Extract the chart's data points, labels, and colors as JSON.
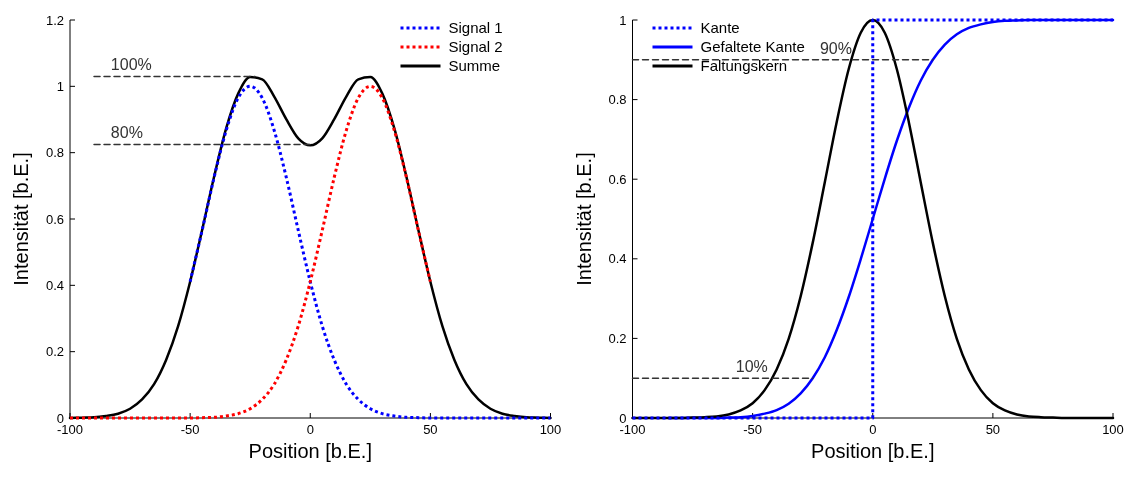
{
  "chart_data": [
    {
      "type": "line",
      "xlabel": "Position [b.E.]",
      "ylabel": "Intensität [b.E.]",
      "xlim": [
        -100,
        100
      ],
      "xticks": [
        -100,
        -50,
        0,
        50,
        100
      ],
      "ylim": [
        0,
        1.2
      ],
      "yticks": [
        0,
        0.2,
        0.4,
        0.6,
        0.8,
        1,
        1.2
      ],
      "legend": "top right",
      "x": [
        -100,
        -95,
        -90,
        -85,
        -80,
        -75,
        -70,
        -65,
        -60,
        -55,
        -50,
        -45,
        -40,
        -35,
        -30,
        -25,
        -20,
        -15,
        -10,
        -5,
        0,
        5,
        10,
        15,
        20,
        25,
        30,
        35,
        40,
        45,
        50,
        55,
        60,
        65,
        70,
        75,
        80,
        85,
        90,
        95,
        100
      ],
      "series": [
        {
          "name": "Signal 1",
          "color": "#0000ff",
          "line_style": "dotted",
          "values": [
            null,
            null,
            null,
            null,
            null,
            null,
            null,
            null,
            null,
            null,
            0.411,
            0.566,
            0.726,
            0.867,
            0.965,
            1,
            0.965,
            0.867,
            0.726,
            0.566,
            0.411,
            0.277,
            0.175,
            0.102,
            0.056,
            0.028,
            0.013,
            0.006,
            0.002,
            0.001,
            0,
            0,
            0,
            0,
            0,
            0,
            0,
            0,
            0,
            0,
            0
          ]
        },
        {
          "name": "Signal 2",
          "color": "#ff0000",
          "line_style": "dotted",
          "values": [
            0,
            0,
            0,
            0,
            0,
            0,
            0,
            0,
            0,
            0,
            0,
            0.001,
            0.002,
            0.006,
            0.013,
            0.028,
            0.056,
            0.102,
            0.175,
            0.277,
            0.411,
            0.566,
            0.726,
            0.867,
            0.965,
            1,
            0.965,
            0.867,
            0.726,
            0.566,
            0.411,
            null,
            null,
            null,
            null,
            null,
            null,
            null,
            null,
            null,
            null
          ]
        },
        {
          "name": "Summe",
          "color": "#000000",
          "line_style": "solid",
          "values": [
            0,
            0.001,
            0.002,
            0.006,
            0.013,
            0.028,
            0.056,
            0.102,
            0.175,
            0.277,
            0.411,
            0.567,
            0.728,
            0.873,
            0.978,
            1.028,
            1.021,
            0.969,
            0.901,
            0.843,
            0.822,
            0.843,
            0.901,
            0.969,
            1.021,
            1.028,
            0.978,
            0.873,
            0.728,
            0.567,
            0.411,
            0.277,
            0.175,
            0.102,
            0.056,
            0.028,
            0.013,
            0.006,
            0.002,
            0.001,
            0
          ]
        },
        {
          "color": "#333333",
          "line_style": "dashed",
          "x": [
            -90,
            -23
          ],
          "values": [
            1.03,
            1.03
          ]
        },
        {
          "color": "#333333",
          "line_style": "dashed",
          "x": [
            -90,
            0
          ],
          "values": [
            0.825,
            0.825
          ]
        }
      ],
      "annotations": [
        {
          "text": "100%",
          "x": -83,
          "y": 1.03
        },
        {
          "text": "80%",
          "x": -83,
          "y": 0.825
        }
      ]
    },
    {
      "type": "line",
      "xlabel": "Position [b.E.]",
      "ylabel": "Intensität [b.E.]",
      "xlim": [
        -100,
        100
      ],
      "xticks": [
        -100,
        -50,
        0,
        50,
        100
      ],
      "ylim": [
        0,
        1
      ],
      "yticks": [
        0,
        0.2,
        0.4,
        0.6,
        0.8,
        1
      ],
      "legend": "top left",
      "x": [
        -100,
        -95,
        -90,
        -85,
        -80,
        -75,
        -70,
        -65,
        -60,
        -55,
        -50,
        -45,
        -40,
        -35,
        -30,
        -25,
        -20,
        -15,
        -10,
        -5,
        0,
        5,
        10,
        15,
        20,
        25,
        30,
        35,
        40,
        45,
        50,
        55,
        60,
        65,
        70,
        75,
        80,
        85,
        90,
        95,
        100
      ],
      "series": [
        {
          "name": "Kante",
          "color": "#0000ff",
          "line_style": "dotted",
          "x": [
            -100,
            0,
            0,
            100
          ],
          "values": [
            0,
            0,
            1,
            1
          ]
        },
        {
          "name": "Gefaltete Kante",
          "color": "#0000ff",
          "line_style": "solid",
          "values": [
            null,
            null,
            null,
            0,
            0,
            0,
            0,
            0,
            0.001,
            0.002,
            0.005,
            0.011,
            0.02,
            0.036,
            0.062,
            0.1,
            0.152,
            0.221,
            0.304,
            0.399,
            0.5,
            0.601,
            0.696,
            0.779,
            0.848,
            0.9,
            0.938,
            0.964,
            0.98,
            0.989,
            0.995,
            0.998,
            0.999,
            1,
            1,
            1,
            1,
            1,
            1,
            1,
            1
          ]
        },
        {
          "name": "Faltungskern",
          "color": "#000000",
          "line_style": "solid",
          "values": [
            0,
            0,
            0,
            0,
            0,
            0.001,
            0.002,
            0.004,
            0.009,
            0.019,
            0.037,
            0.07,
            0.122,
            0.199,
            0.306,
            0.44,
            0.591,
            0.744,
            0.877,
            0.968,
            1,
            0.968,
            0.877,
            0.744,
            0.591,
            0.44,
            0.306,
            0.199,
            0.122,
            0.07,
            0.037,
            0.019,
            0.009,
            0.004,
            0.002,
            0.001,
            0,
            0,
            0,
            0,
            0
          ]
        },
        {
          "color": "#333333",
          "line_style": "dashed",
          "x": [
            -100,
            25
          ],
          "values": [
            0.9,
            0.9
          ]
        },
        {
          "color": "#333333",
          "line_style": "dashed",
          "x": [
            -100,
            -25
          ],
          "values": [
            0.1,
            0.1
          ]
        }
      ],
      "annotations": [
        {
          "text": "90%",
          "x": -22,
          "y": 0.9
        },
        {
          "text": "10%",
          "x": -57,
          "y": 0.1
        }
      ]
    }
  ]
}
